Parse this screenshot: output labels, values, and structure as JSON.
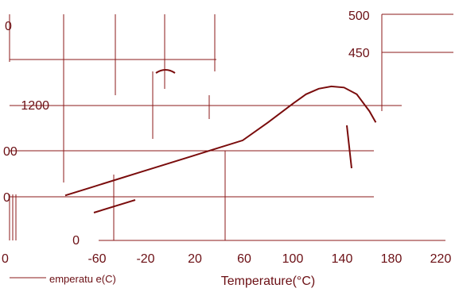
{
  "chart_data": {
    "type": "line",
    "title": "",
    "xlabel": "Temperature(°C)",
    "xlim": [
      -80,
      220
    ],
    "x_ticks": [
      "-60",
      "-20",
      "20",
      "60",
      "100",
      "140",
      "180",
      "220"
    ],
    "ylim": [
      0,
      1400
    ],
    "y_ticks_left": [
      "0",
      "1200"
    ],
    "y_ticks_right": [
      "450",
      "500"
    ],
    "partial_labels": [
      "0",
      "00",
      "0",
      "0",
      "emperatu e(C)"
    ],
    "grid": true,
    "colors": {
      "line": "#7a0c0c",
      "grid": "#8b1a1a",
      "text": "#6b0f14"
    },
    "series": [
      {
        "x": [
          -80,
          -60,
          -40,
          -20,
          0,
          20,
          40,
          60,
          80,
          100,
          110,
          120,
          130,
          140,
          150,
          160,
          165
        ],
        "y": [
          400,
          470,
          540,
          610,
          680,
          750,
          820,
          890,
          1050,
          1220,
          1300,
          1350,
          1370,
          1360,
          1300,
          1150,
          1050
        ]
      }
    ]
  }
}
